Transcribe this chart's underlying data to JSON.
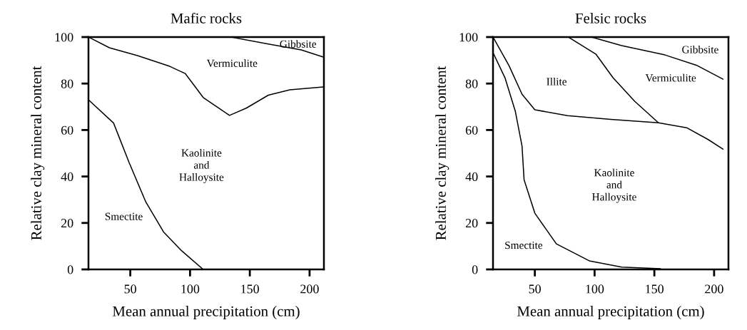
{
  "chart_data": [
    {
      "type": "line",
      "title": "Mafic rocks",
      "xlabel": "Mean annual precipitation (cm)",
      "ylabel": "Relative clay mineral content",
      "xlim": [
        15,
        212
      ],
      "ylim": [
        0,
        100
      ],
      "xticks": [
        50,
        100,
        150,
        200
      ],
      "yticks": [
        0,
        20,
        40,
        60,
        80,
        100
      ],
      "grid": false,
      "marker": "none",
      "line_style": "solid",
      "series": [
        {
          "color": "#000000",
          "x": [
            15,
            36,
            49,
            63,
            78,
            93,
            111
          ],
          "values": [
            73,
            63,
            46,
            29,
            16,
            8,
            0
          ]
        },
        {
          "color": "#000000",
          "x": [
            15,
            32.5,
            56,
            83,
            96,
            111,
            133,
            147,
            165.5,
            183.5,
            211
          ],
          "values": [
            100,
            95.4,
            92,
            87.4,
            84.3,
            74,
            66.3,
            69.4,
            75,
            77.3,
            78.5
          ]
        },
        {
          "color": "#000000",
          "x": [
            134,
            165.5,
            193,
            211
          ],
          "values": [
            100,
            97,
            94.5,
            91.5
          ]
        }
      ],
      "annotations": [
        "Gibbsite",
        "Vermiculite",
        "Kaolinite\nand\nHalloysite",
        "Smectite"
      ]
    },
    {
      "type": "line",
      "title": "Felsic rocks",
      "xlabel": "Mean annual precipitation (cm)",
      "ylabel": "Relative clay mineral content",
      "xlim": [
        15,
        212
      ],
      "ylim": [
        0,
        100
      ],
      "xticks": [
        50,
        100,
        150,
        200
      ],
      "yticks": [
        0,
        20,
        40,
        60,
        80,
        100
      ],
      "grid": false,
      "marker": "none",
      "line_style": "solid",
      "series": [
        {
          "color": "#000000",
          "x": [
            15,
            25,
            33.7,
            39.3,
            41,
            50,
            68,
            95.5,
            122.7,
            155
          ],
          "values": [
            93.3,
            82.5,
            68,
            53,
            38.6,
            24.2,
            11,
            3.7,
            1,
            0.3
          ]
        },
        {
          "color": "#000000",
          "x": [
            15,
            28.4,
            39.3,
            50,
            77.3,
            113.6,
            153.4,
            177,
            195,
            207.4
          ],
          "values": [
            100,
            87.7,
            75.4,
            68.7,
            66.2,
            64.6,
            63.1,
            61,
            55.9,
            51.8
          ]
        },
        {
          "color": "#000000",
          "x": [
            78,
            101,
            115.4,
            133.5,
            153.4
          ],
          "values": [
            100,
            92.7,
            82.5,
            72.4,
            63.1
          ]
        },
        {
          "color": "#000000",
          "x": [
            97.3,
            122.7,
            158.9,
            186,
            207.4
          ],
          "values": [
            100,
            96.3,
            92.3,
            87.7,
            81.9
          ]
        }
      ],
      "annotations": [
        "Illite",
        "Vermiculite",
        "Gibbsite",
        "Kaolinite\nand\nHalloysite",
        "Smectite"
      ]
    }
  ]
}
